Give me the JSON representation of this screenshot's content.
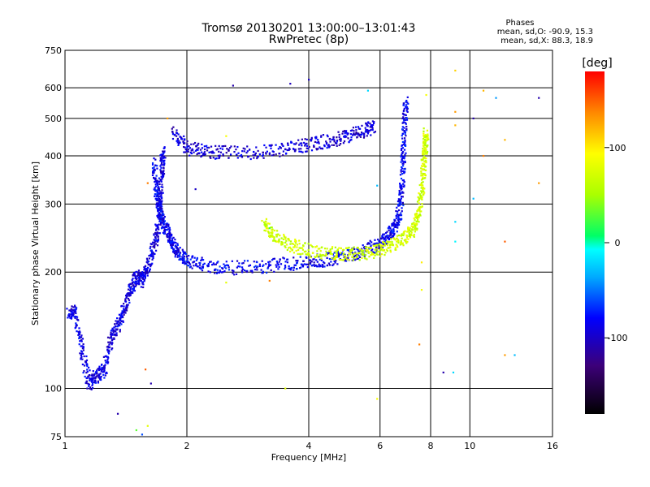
{
  "chart_data": {
    "type": "scatter",
    "title": "Tromsø 20130201 13:00:00–13:01:43",
    "subtitle": "RwPretec (8p)",
    "xlabel": "Frequency [MHz]",
    "ylabel": "Stationary phase Virtual Height [km]",
    "x_scale": "log",
    "y_scale": "log",
    "xlim": [
      1,
      16
    ],
    "ylim": [
      75,
      750
    ],
    "x_ticks": [
      "1",
      "2",
      "4",
      "6",
      "8",
      "10",
      "16"
    ],
    "x_tick_values": [
      1,
      2,
      4,
      6,
      8,
      10,
      16
    ],
    "y_ticks": [
      "75",
      "100",
      "200",
      "300",
      "400",
      "500",
      "600",
      "750"
    ],
    "y_tick_values": [
      75,
      100,
      200,
      300,
      400,
      500,
      600,
      750
    ],
    "grid": true,
    "colorbar": {
      "label": "[deg]",
      "ticks": [
        "100",
        "0",
        "-100"
      ],
      "tick_values": [
        100,
        0,
        -100
      ],
      "range": [
        -180,
        180
      ]
    },
    "stats": {
      "heading": "Phases",
      "line_o": "mean, sd,O: -90.9, 15.3",
      "line_x": "mean, sd,X: 88.3, 18.9"
    },
    "traces": [
      {
        "type": "o_mode_f",
        "phase": -90,
        "points": [
          [
            1.02,
            156
          ],
          [
            1.06,
            158
          ],
          [
            1.1,
            125
          ],
          [
            1.15,
            103
          ],
          [
            1.2,
            108
          ],
          [
            1.25,
            112
          ],
          [
            1.3,
            135
          ],
          [
            1.35,
            145
          ],
          [
            1.4,
            160
          ],
          [
            1.45,
            180
          ],
          [
            1.5,
            195
          ],
          [
            1.55,
            190
          ],
          [
            1.6,
            205
          ],
          [
            1.65,
            230
          ],
          [
            1.7,
            260
          ],
          [
            1.72,
            320
          ],
          [
            1.74,
            380
          ],
          [
            1.75,
            410
          ]
        ]
      },
      {
        "type": "o_mode_e_cusp",
        "phase": -85,
        "points": [
          [
            1.66,
            380
          ],
          [
            1.68,
            330
          ],
          [
            1.7,
            300
          ],
          [
            1.72,
            280
          ],
          [
            1.75,
            265
          ],
          [
            1.8,
            250
          ],
          [
            1.85,
            235
          ],
          [
            1.9,
            225
          ],
          [
            2.0,
            215
          ],
          [
            2.2,
            208
          ],
          [
            2.5,
            205
          ],
          [
            3.0,
            206
          ],
          [
            3.5,
            210
          ],
          [
            4.0,
            212
          ],
          [
            4.5,
            216
          ],
          [
            5.0,
            222
          ],
          [
            5.5,
            228
          ],
          [
            6.0,
            236
          ],
          [
            6.3,
            248
          ],
          [
            6.5,
            262
          ],
          [
            6.7,
            285
          ],
          [
            6.8,
            330
          ],
          [
            6.85,
            400
          ],
          [
            6.9,
            480
          ],
          [
            6.95,
            560
          ]
        ]
      },
      {
        "type": "o_mode_f2",
        "phase": -95,
        "points": [
          [
            1.85,
            460
          ],
          [
            2.0,
            420
          ],
          [
            2.2,
            410
          ],
          [
            2.5,
            408
          ],
          [
            3.0,
            408
          ],
          [
            3.5,
            415
          ],
          [
            4.0,
            428
          ],
          [
            4.5,
            438
          ],
          [
            5.0,
            450
          ],
          [
            5.5,
            465
          ],
          [
            5.8,
            478
          ]
        ]
      },
      {
        "type": "x_mode",
        "phase": 70,
        "points": [
          [
            3.1,
            265
          ],
          [
            3.3,
            250
          ],
          [
            3.6,
            235
          ],
          [
            4.0,
            228
          ],
          [
            4.5,
            224
          ],
          [
            5.0,
            223
          ],
          [
            5.5,
            224
          ],
          [
            6.0,
            228
          ],
          [
            6.5,
            236
          ],
          [
            7.0,
            248
          ],
          [
            7.3,
            262
          ],
          [
            7.5,
            290
          ],
          [
            7.6,
            330
          ],
          [
            7.7,
            380
          ],
          [
            7.75,
            420
          ],
          [
            7.8,
            460
          ]
        ]
      }
    ],
    "noise": [
      {
        "x": 2.6,
        "y": 608,
        "phase": -110
      },
      {
        "x": 3.6,
        "y": 615,
        "phase": -105
      },
      {
        "x": 4.0,
        "y": 630,
        "phase": -100
      },
      {
        "x": 5.6,
        "y": 590,
        "phase": -20
      },
      {
        "x": 7.8,
        "y": 575,
        "phase": 90
      },
      {
        "x": 9.2,
        "y": 665,
        "phase": 110
      },
      {
        "x": 9.2,
        "y": 520,
        "phase": 130
      },
      {
        "x": 9.2,
        "y": 480,
        "phase": 120
      },
      {
        "x": 10.2,
        "y": 500,
        "phase": -110
      },
      {
        "x": 10.8,
        "y": 590,
        "phase": 120
      },
      {
        "x": 11.6,
        "y": 565,
        "phase": -40
      },
      {
        "x": 14.8,
        "y": 565,
        "phase": -110
      },
      {
        "x": 12.2,
        "y": 440,
        "phase": 120
      },
      {
        "x": 10.8,
        "y": 400,
        "phase": 140
      },
      {
        "x": 10.2,
        "y": 310,
        "phase": -30
      },
      {
        "x": 9.2,
        "y": 270,
        "phase": -20
      },
      {
        "x": 9.2,
        "y": 240,
        "phase": -10
      },
      {
        "x": 12.2,
        "y": 240,
        "phase": 150
      },
      {
        "x": 14.8,
        "y": 340,
        "phase": 130
      },
      {
        "x": 7.6,
        "y": 212,
        "phase": 100
      },
      {
        "x": 7.6,
        "y": 180,
        "phase": 90
      },
      {
        "x": 7.5,
        "y": 130,
        "phase": 140
      },
      {
        "x": 8.6,
        "y": 110,
        "phase": -110
      },
      {
        "x": 9.1,
        "y": 110,
        "phase": -20
      },
      {
        "x": 12.2,
        "y": 122,
        "phase": 130
      },
      {
        "x": 12.9,
        "y": 122,
        "phase": -30
      },
      {
        "x": 2.5,
        "y": 188,
        "phase": 80
      },
      {
        "x": 3.2,
        "y": 190,
        "phase": 140
      },
      {
        "x": 3.5,
        "y": 100,
        "phase": 80
      },
      {
        "x": 5.9,
        "y": 94,
        "phase": 90
      },
      {
        "x": 5.9,
        "y": 335,
        "phase": -30
      },
      {
        "x": 3.2,
        "y": 260,
        "phase": 20
      },
      {
        "x": 1.5,
        "y": 78,
        "phase": 30
      },
      {
        "x": 1.55,
        "y": 76,
        "phase": -60
      },
      {
        "x": 1.6,
        "y": 80,
        "phase": 80
      },
      {
        "x": 1.58,
        "y": 112,
        "phase": 150
      },
      {
        "x": 1.63,
        "y": 103,
        "phase": -110
      },
      {
        "x": 1.35,
        "y": 86,
        "phase": -110
      },
      {
        "x": 2.1,
        "y": 328,
        "phase": -100
      },
      {
        "x": 2.5,
        "y": 450,
        "phase": 90
      },
      {
        "x": 1.79,
        "y": 500,
        "phase": 130
      },
      {
        "x": 1.6,
        "y": 340,
        "phase": 140
      }
    ]
  }
}
